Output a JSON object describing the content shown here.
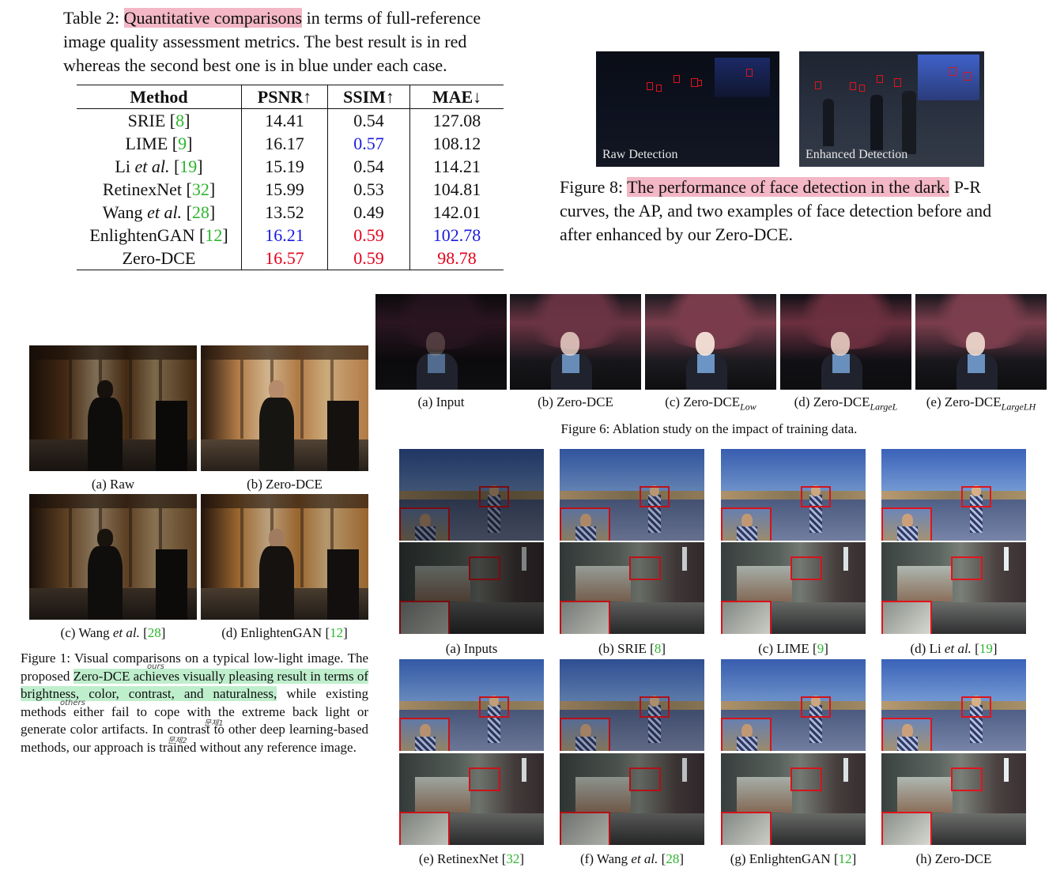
{
  "table2": {
    "caption_label": "Table 2:",
    "caption_highlight": "Quantitative comparisons",
    "caption_rest": "in terms of full-reference image quality assessment metrics. The best result is in red whereas the second best one is in blue under each case.",
    "headers": [
      "Method",
      "PSNR↑",
      "SSIM↑",
      "MAE↓"
    ],
    "rows": [
      {
        "method": "SRIE",
        "method_em": "",
        "ref": "8",
        "psnr": "14.41",
        "ssim": "0.54",
        "mae": "127.08"
      },
      {
        "method": "LIME",
        "method_em": "",
        "ref": "9",
        "psnr": "16.17",
        "ssim": "0.57",
        "mae": "108.12"
      },
      {
        "method": "Li",
        "method_em": "et al.",
        "ref": "19",
        "psnr": "15.19",
        "ssim": "0.54",
        "mae": "114.21"
      },
      {
        "method": "RetinexNet",
        "method_em": "",
        "ref": "32",
        "psnr": "15.99",
        "ssim": "0.53",
        "mae": "104.81"
      },
      {
        "method": "Wang",
        "method_em": "et al.",
        "ref": "28",
        "psnr": "13.52",
        "ssim": "0.49",
        "mae": "142.01"
      },
      {
        "method": "EnlightenGAN",
        "method_em": "",
        "ref": "12",
        "psnr": "16.21",
        "ssim": "0.59",
        "mae": "102.78"
      },
      {
        "method": "Zero-DCE",
        "method_em": "",
        "ref": "",
        "psnr": "16.57",
        "ssim": "0.59",
        "mae": "98.78"
      }
    ],
    "colors": {
      "red": "#e3001b",
      "blue": "#1a1adf",
      "ref_green": "#2db52d"
    }
  },
  "figure8": {
    "images": [
      {
        "label": "Raw Detection"
      },
      {
        "label": "Enhanced Detection"
      }
    ],
    "caption_label": "Figure 8:",
    "caption_highlight": "The performance of face detection in the dark.",
    "caption_rest": "P-R curves, the AP, and two examples of face detection before and after enhanced by our Zero-DCE."
  },
  "figure6": {
    "subcaptions": [
      {
        "text": "(a) Input",
        "sub": ""
      },
      {
        "text": "(b) Zero-DCE",
        "sub": ""
      },
      {
        "text": "(c) Zero-DCE",
        "sub": "Low"
      },
      {
        "text": "(d) Zero-DCE",
        "sub": "LargeL"
      },
      {
        "text": "(e) Zero-DCE",
        "sub": "LargeLH"
      }
    ],
    "caption": "Figure 6: Ablation study on the impact of training data."
  },
  "figure1": {
    "subcaptions": [
      {
        "pre": "(a) Raw",
        "em": "",
        "ref": ""
      },
      {
        "pre": "(b) Zero-DCE",
        "em": "",
        "ref": ""
      },
      {
        "pre": "(c) Wang ",
        "em": "et al.",
        "ref": "28"
      },
      {
        "pre": "(d) EnlightenGAN ",
        "em": "",
        "ref": "12"
      }
    ],
    "caption_a": "Figure 1: Visual comparisons on a typical low-light image. The proposed",
    "caption_highlight": "Zero-DCE achieves visually pleasing result in terms of brightness, color, contrast, and naturalness,",
    "caption_b": "while existing methods either fail to cope with the extreme back light or generate color artifacts. In contrast to other deep learning-based methods, our approach is trained without any reference image.",
    "annotations": [
      "ours",
      "others",
      "문제1",
      "문제2"
    ]
  },
  "figure_grid": {
    "subcaptions": [
      {
        "pre": "(a) Inputs",
        "em": "",
        "ref": ""
      },
      {
        "pre": "(b) SRIE ",
        "em": "",
        "ref": "8"
      },
      {
        "pre": "(c) LIME ",
        "em": "",
        "ref": "9"
      },
      {
        "pre": "(d) Li ",
        "em": "et al.",
        "ref": "19"
      },
      {
        "pre": "(e) RetinexNet ",
        "em": "",
        "ref": "32"
      },
      {
        "pre": "(f) Wang ",
        "em": "et al.",
        "ref": "28"
      },
      {
        "pre": "(g) EnlightenGAN ",
        "em": "",
        "ref": "12"
      },
      {
        "pre": "(h) Zero-DCE",
        "em": "",
        "ref": ""
      }
    ]
  }
}
